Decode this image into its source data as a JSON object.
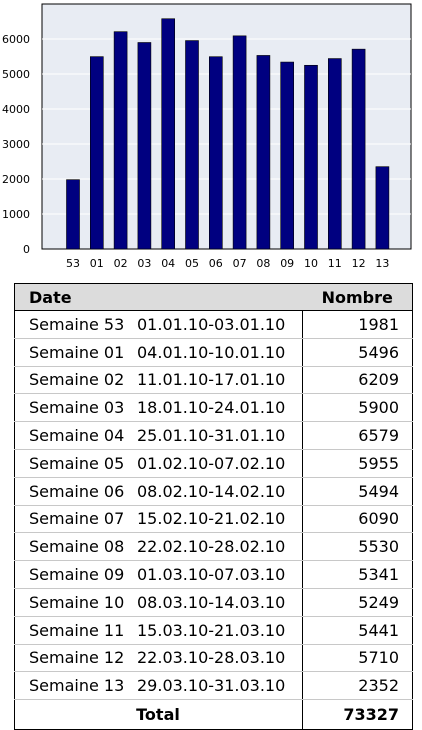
{
  "chart_data": {
    "type": "bar",
    "categories": [
      "53",
      "01",
      "02",
      "03",
      "04",
      "05",
      "06",
      "07",
      "08",
      "09",
      "10",
      "11",
      "12",
      "13"
    ],
    "values": [
      1981,
      5496,
      6209,
      5900,
      6579,
      5955,
      5494,
      6090,
      5530,
      5341,
      5249,
      5441,
      5710,
      2352
    ],
    "ylim": [
      0,
      7000
    ],
    "yticks": [
      0,
      1000,
      2000,
      3000,
      4000,
      5000,
      6000
    ],
    "grid": true,
    "bar_color": "#000080",
    "plot_background": "#e8ecf3"
  },
  "table": {
    "header": {
      "date": "Date",
      "count": "Nombre"
    },
    "rows": [
      {
        "week": "Semaine 53",
        "range": "01.01.10-03.01.10",
        "count": "1981"
      },
      {
        "week": "Semaine 01",
        "range": "04.01.10-10.01.10",
        "count": "5496"
      },
      {
        "week": "Semaine 02",
        "range": "11.01.10-17.01.10",
        "count": "6209"
      },
      {
        "week": "Semaine 03",
        "range": "18.01.10-24.01.10",
        "count": "5900"
      },
      {
        "week": "Semaine 04",
        "range": "25.01.10-31.01.10",
        "count": "6579"
      },
      {
        "week": "Semaine 05",
        "range": "01.02.10-07.02.10",
        "count": "5955"
      },
      {
        "week": "Semaine 06",
        "range": "08.02.10-14.02.10",
        "count": "5494"
      },
      {
        "week": "Semaine 07",
        "range": "15.02.10-21.02.10",
        "count": "6090"
      },
      {
        "week": "Semaine 08",
        "range": "22.02.10-28.02.10",
        "count": "5530"
      },
      {
        "week": "Semaine 09",
        "range": "01.03.10-07.03.10",
        "count": "5341"
      },
      {
        "week": "Semaine 10",
        "range": "08.03.10-14.03.10",
        "count": "5249"
      },
      {
        "week": "Semaine 11",
        "range": "15.03.10-21.03.10",
        "count": "5441"
      },
      {
        "week": "Semaine 12",
        "range": "22.03.10-28.03.10",
        "count": "5710"
      },
      {
        "week": "Semaine 13",
        "range": "29.03.10-31.03.10",
        "count": "2352"
      }
    ],
    "footer": {
      "label": "Total",
      "total": "73327"
    }
  }
}
